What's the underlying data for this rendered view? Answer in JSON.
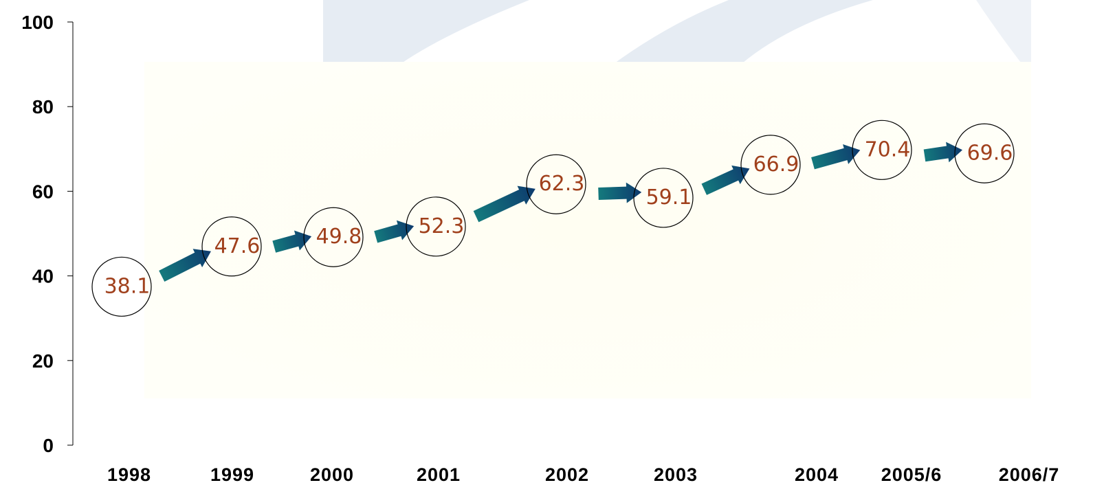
{
  "chart_data": {
    "type": "line",
    "title": "",
    "xlabel": "",
    "ylabel": "",
    "categories": [
      "1998",
      "1999",
      "2000",
      "2001",
      "2002",
      "2003",
      "2004",
      "2005/6",
      "2006/7"
    ],
    "series": [
      {
        "values": [
          38.1,
          47.6,
          49.8,
          52.3,
          62.3,
          59.1,
          66.9,
          70.4,
          69.6
        ]
      }
    ],
    "data_labels": [
      "38.1",
      "47.6",
      "49.8",
      "52.3",
      "62.3",
      "59.1",
      "66.9",
      "70.4",
      "69.6"
    ],
    "yticks": [
      "0",
      "20",
      "40",
      "60",
      "80",
      "100"
    ],
    "ylim": [
      0,
      100
    ],
    "grid": false,
    "legend": "none",
    "marker": "circle",
    "connector": "arrow",
    "colors": {
      "label": "#a0401c",
      "arrow_start": "#147a7d",
      "arrow_end": "#0e3a6e",
      "axis": "#000000",
      "background_swoosh": "#e3eaf2",
      "background_panel": "#fffef4"
    }
  }
}
